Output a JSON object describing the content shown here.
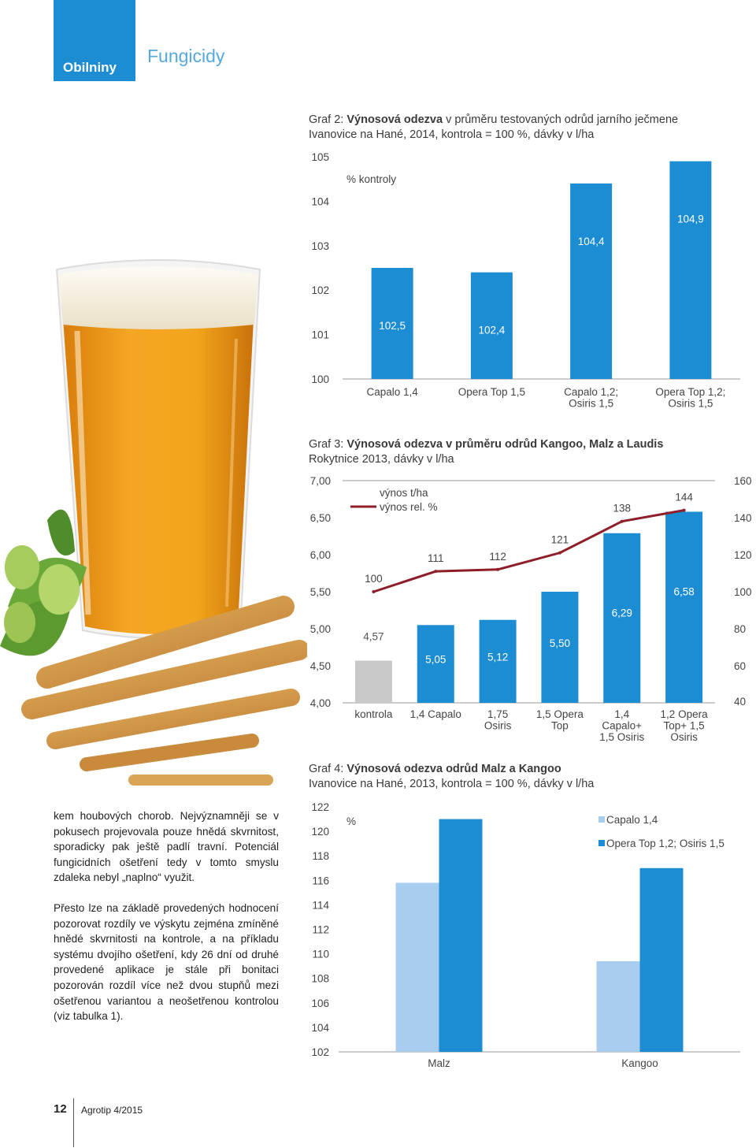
{
  "header": {
    "category": "Obilniny",
    "section": "Fungicidy"
  },
  "colors": {
    "accent": "#1d8dd3",
    "bar_blue": "#1d8dd3",
    "bar_light": "#a8cdee",
    "control_gray": "#c8c8c8",
    "line_red": "#8e1f2a"
  },
  "body_text": {
    "paragraph1": "kem houbových chorob. Nejvýznamněji se v pokusech projevovala pouze hnědá skvrnitost, sporadicky pak ještě padlí travní. Potenciál fungicidních ošetření tedy v tomto smyslu zdaleka nebyl „naplno“ využit.",
    "paragraph2": "Přesto lze na základě provedených hodnocení pozorovat rozdíly ve výskytu zejména zmíněné hnědé skvrnitosti na kontrole, a na příkladu systému dvojího ošetření, kdy 26 dní od druhé provedené aplikace je stále při bonitaci pozorován rozdíl více než dvou stupňů mezi ošetřenou variantou a neošetřenou kontrolou (viz tabulka 1)."
  },
  "footer": {
    "page_number": "12",
    "magazine": "Agrotip 4/2015"
  },
  "chart_data": [
    {
      "type": "bar",
      "title_prefix": "Graf 2: ",
      "title_bold": "Výnosová odezva",
      "title_rest": " v průměru testovaných odrůd jarního ječmene",
      "subtitle": "Ivanovice na Hané, 2014, kontrola = 100 %, dávky v l/ha",
      "ylabel": "% kontroly",
      "ylim": [
        100,
        105
      ],
      "yticks": [
        100,
        101,
        102,
        103,
        104,
        105
      ],
      "categories": [
        "Capalo 1,4",
        "Opera Top 1,5",
        "Capalo 1,2; Osiris 1,5",
        "Opera Top 1,2; Osiris 1,5"
      ],
      "values": [
        102.5,
        102.4,
        104.4,
        104.9
      ],
      "value_labels": [
        "102,5",
        "102,4",
        "104,4",
        "104,9"
      ]
    },
    {
      "type": "bar+line",
      "title_prefix": "Graf 3: ",
      "title_bold": "Výnosová odezva v průměru odrůd Kangoo, Malz a Laudis",
      "subtitle": "Rokytnice 2013, dávky v l/ha",
      "ylim_left": [
        4.0,
        7.0
      ],
      "yticks_left": [
        "4,00",
        "4,50",
        "5,00",
        "5,50",
        "6,00",
        "6,50",
        "7,00"
      ],
      "ylim_right": [
        40,
        160
      ],
      "yticks_right": [
        "40",
        "60",
        "80",
        "100",
        "120",
        "140",
        "160"
      ],
      "legend": [
        "výnos t/ha",
        "výnos rel. %"
      ],
      "categories": [
        "kontrola",
        "1,4 Capalo",
        "1,75 Osiris",
        "1,5 Opera Top",
        "1,4 Capalo+ 1,5 Osiris",
        "1,2 Opera Top+ 1,5 Osiris"
      ],
      "series": [
        {
          "name": "výnos t/ha",
          "values": [
            4.57,
            5.05,
            5.12,
            5.5,
            6.29,
            6.58
          ],
          "labels": [
            "4,57",
            "5,05",
            "5,12",
            "5,50",
            "6,29",
            "6,58"
          ]
        },
        {
          "name": "výnos rel. %",
          "values": [
            100,
            111,
            112,
            121,
            138,
            144
          ],
          "labels": [
            "100",
            "111",
            "112",
            "121",
            "138",
            "144"
          ]
        }
      ]
    },
    {
      "type": "bar",
      "title_prefix": "Graf 4: ",
      "title_bold": "Výnosová odezva odrůd Malz a Kangoo",
      "subtitle": "Ivanovice na Hané, 2013, kontrola = 100 %, dávky v l/ha",
      "ylabel": "%",
      "ylim": [
        102,
        122
      ],
      "yticks": [
        102,
        104,
        106,
        108,
        110,
        112,
        114,
        116,
        118,
        120,
        122
      ],
      "categories": [
        "Malz",
        "Kangoo"
      ],
      "series": [
        {
          "name": "Capalo 1,4",
          "values": [
            115.8,
            109.4
          ]
        },
        {
          "name": "Opera Top 1,2; Osiris 1,5",
          "values": [
            121.0,
            117.0
          ]
        }
      ]
    }
  ]
}
